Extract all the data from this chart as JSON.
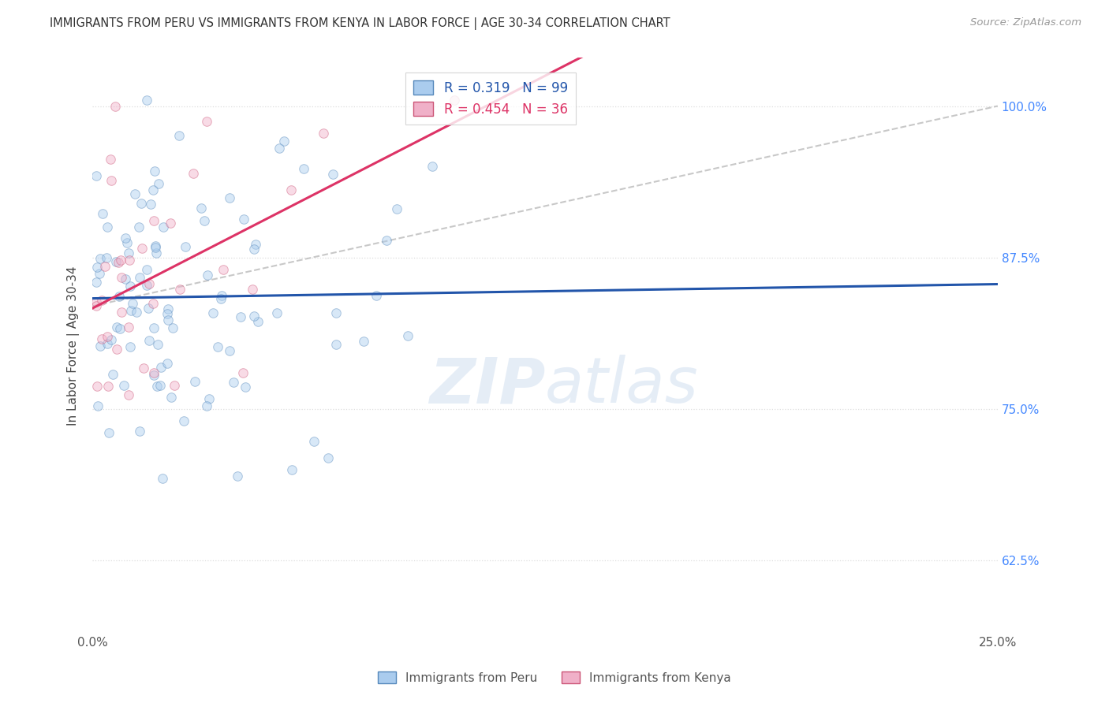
{
  "title": "IMMIGRANTS FROM PERU VS IMMIGRANTS FROM KENYA IN LABOR FORCE | AGE 30-34 CORRELATION CHART",
  "source": "Source: ZipAtlas.com",
  "ylabel": "In Labor Force | Age 30-34",
  "xlim": [
    0.0,
    0.25
  ],
  "ylim": [
    0.565,
    1.04
  ],
  "yticks": [
    0.625,
    0.75,
    0.875,
    1.0
  ],
  "ytick_labels": [
    "62.5%",
    "75.0%",
    "87.5%",
    "100.0%"
  ],
  "peru_color": "#aaccee",
  "kenya_color": "#f0b0c8",
  "peru_edge_color": "#5588bb",
  "kenya_edge_color": "#cc5577",
  "line_peru_color": "#2255aa",
  "line_kenya_color": "#dd3366",
  "dashed_line_color": "#bbbbbb",
  "R_peru": 0.319,
  "N_peru": 99,
  "R_kenya": 0.454,
  "N_kenya": 36,
  "watermark_zip": "ZIP",
  "watermark_atlas": "atlas",
  "background_color": "#ffffff",
  "grid_color": "#dddddd",
  "right_axis_color": "#4488ff",
  "marker_size": 70,
  "marker_alpha": 0.45,
  "line_width": 2.2,
  "legend_peru_label": "R = 0.319   N = 99",
  "legend_kenya_label": "R = 0.454   N = 36",
  "bottom_peru_label": "Immigrants from Peru",
  "bottom_kenya_label": "Immigrants from Kenya"
}
